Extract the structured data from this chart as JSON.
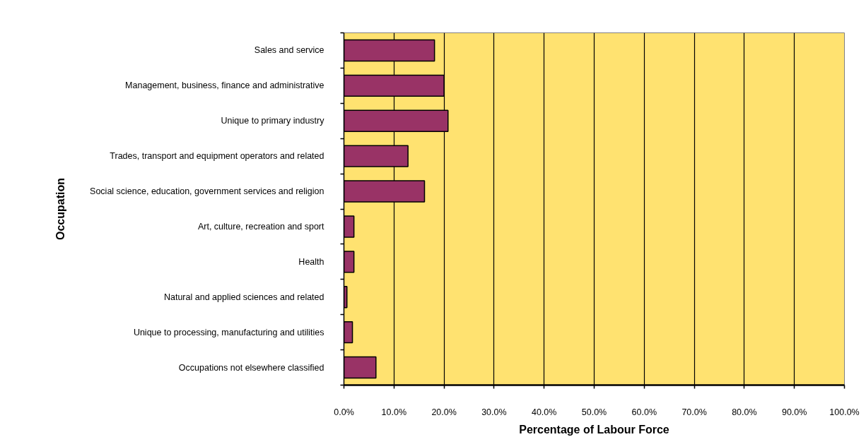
{
  "chart_data": {
    "type": "bar",
    "orientation": "horizontal",
    "xlabel": "Percentage of Labour Force",
    "ylabel": "Occupation",
    "categories": [
      "Sales and service",
      "Management, business, finance and administrative",
      "Unique to primary industry",
      "Trades, transport and equipment operators and related",
      "Social science, education, government services and religion",
      "Art, culture, recreation and sport",
      "Health",
      "Natural and applied sciences and related",
      "Unique to processing, manufacturing and utilities",
      "Occupations not elsewhere classified"
    ],
    "values": [
      18.1,
      20.0,
      20.8,
      12.8,
      16.1,
      2.0,
      2.0,
      0.6,
      1.7,
      6.4
    ],
    "color": "#993366",
    "xlim": [
      0,
      100
    ],
    "xticks": [
      {
        "value": 0,
        "label": "0.0%"
      },
      {
        "value": 10,
        "label": "10.0%"
      },
      {
        "value": 20,
        "label": "20.0%"
      },
      {
        "value": 30,
        "label": "30.0%"
      },
      {
        "value": 40,
        "label": "40.0%"
      },
      {
        "value": 50,
        "label": "50.0%"
      },
      {
        "value": 60,
        "label": "60.0%"
      },
      {
        "value": 70,
        "label": "70.0%"
      },
      {
        "value": 80,
        "label": "80.0%"
      },
      {
        "value": 90,
        "label": "90.0%"
      },
      {
        "value": 100,
        "label": "100.0%"
      }
    ],
    "grid": "x"
  }
}
